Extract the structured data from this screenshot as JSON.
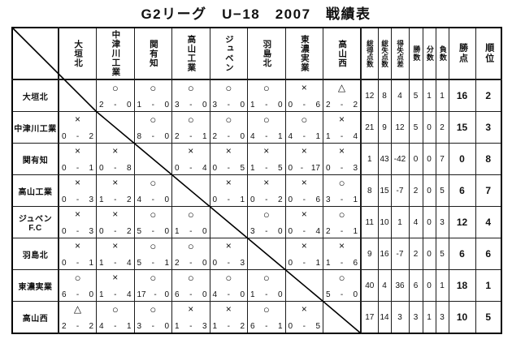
{
  "title": "G2リーグ　U−18　2007　戦績表",
  "columns": {
    "teams": [
      "大垣北",
      "中津川工業",
      "関有知",
      "高山工業",
      "ジュベン",
      "羽島北",
      "東濃実業",
      "高山西"
    ],
    "stats": [
      "総得点数",
      "総失点数",
      "得失点差",
      "勝数",
      "分数",
      "負数",
      "勝点",
      "順位"
    ]
  },
  "marks": {
    "win": "○",
    "lose": "×",
    "draw": "△"
  },
  "score_separator": "-",
  "rows": [
    {
      "name": "大垣北",
      "results": [
        null,
        {
          "m": "○",
          "l": "2",
          "r": "0"
        },
        {
          "m": "○",
          "l": "1",
          "r": "0"
        },
        {
          "m": "○",
          "l": "3",
          "r": "0"
        },
        {
          "m": "○",
          "l": "3",
          "r": "0"
        },
        {
          "m": "○",
          "l": "1",
          "r": "0"
        },
        {
          "m": "×",
          "l": "0",
          "r": "6"
        },
        {
          "m": "△",
          "l": "2",
          "r": "2"
        }
      ],
      "stats": [
        "12",
        "8",
        "4",
        "5",
        "1",
        "1",
        "16",
        "2"
      ]
    },
    {
      "name": "中津川工業",
      "results": [
        {
          "m": "×",
          "l": "0",
          "r": "2"
        },
        null,
        {
          "m": "○",
          "l": "8",
          "r": "0"
        },
        {
          "m": "○",
          "l": "2",
          "r": "1"
        },
        {
          "m": "○",
          "l": "2",
          "r": "0"
        },
        {
          "m": "○",
          "l": "4",
          "r": "1"
        },
        {
          "m": "○",
          "l": "4",
          "r": "1"
        },
        {
          "m": "×",
          "l": "1",
          "r": "4"
        }
      ],
      "stats": [
        "21",
        "9",
        "12",
        "5",
        "0",
        "2",
        "15",
        "3"
      ]
    },
    {
      "name": "関有知",
      "results": [
        {
          "m": "×",
          "l": "0",
          "r": "1"
        },
        {
          "m": "×",
          "l": "0",
          "r": "8"
        },
        null,
        {
          "m": "×",
          "l": "0",
          "r": "4"
        },
        {
          "m": "×",
          "l": "0",
          "r": "5"
        },
        {
          "m": "×",
          "l": "1",
          "r": "5"
        },
        {
          "m": "×",
          "l": "0",
          "r": "17"
        },
        {
          "m": "×",
          "l": "0",
          "r": "3"
        }
      ],
      "stats": [
        "1",
        "43",
        "-42",
        "0",
        "0",
        "7",
        "0",
        "8"
      ]
    },
    {
      "name": "高山工業",
      "results": [
        {
          "m": "×",
          "l": "0",
          "r": "3"
        },
        {
          "m": "×",
          "l": "1",
          "r": "2"
        },
        {
          "m": "○",
          "l": "4",
          "r": "0"
        },
        null,
        {
          "m": "×",
          "l": "0",
          "r": "1"
        },
        {
          "m": "×",
          "l": "0",
          "r": "2"
        },
        {
          "m": "×",
          "l": "0",
          "r": "6"
        },
        {
          "m": "○",
          "l": "3",
          "r": "1"
        }
      ],
      "stats": [
        "8",
        "15",
        "-7",
        "2",
        "0",
        "5",
        "6",
        "7"
      ]
    },
    {
      "name": "ジュベンF.C",
      "results": [
        {
          "m": "×",
          "l": "0",
          "r": "3"
        },
        {
          "m": "×",
          "l": "0",
          "r": "2"
        },
        {
          "m": "○",
          "l": "5",
          "r": "0"
        },
        {
          "m": "○",
          "l": "1",
          "r": "0"
        },
        null,
        {
          "m": "○",
          "l": "3",
          "r": "0"
        },
        {
          "m": "×",
          "l": "0",
          "r": "4"
        },
        {
          "m": "○",
          "l": "2",
          "r": "1"
        }
      ],
      "stats": [
        "11",
        "10",
        "1",
        "4",
        "0",
        "3",
        "12",
        "4"
      ]
    },
    {
      "name": "羽島北",
      "results": [
        {
          "m": "×",
          "l": "0",
          "r": "1"
        },
        {
          "m": "×",
          "l": "1",
          "r": "4"
        },
        {
          "m": "○",
          "l": "5",
          "r": "1"
        },
        {
          "m": "○",
          "l": "2",
          "r": "0"
        },
        {
          "m": "×",
          "l": "0",
          "r": "3"
        },
        null,
        {
          "m": "×",
          "l": "0",
          "r": "1"
        },
        {
          "m": "×",
          "l": "1",
          "r": "6"
        }
      ],
      "stats": [
        "9",
        "16",
        "-7",
        "2",
        "0",
        "5",
        "6",
        "6"
      ]
    },
    {
      "name": "東濃実業",
      "results": [
        {
          "m": "○",
          "l": "6",
          "r": "0"
        },
        {
          "m": "×",
          "l": "1",
          "r": "4"
        },
        {
          "m": "○",
          "l": "17",
          "r": "0"
        },
        {
          "m": "○",
          "l": "6",
          "r": "0"
        },
        {
          "m": "○",
          "l": "4",
          "r": "0"
        },
        {
          "m": "○",
          "l": "1",
          "r": "0"
        },
        null,
        {
          "m": "○",
          "l": "5",
          "r": "0"
        }
      ],
      "stats": [
        "40",
        "4",
        "36",
        "6",
        "0",
        "1",
        "18",
        "1"
      ]
    },
    {
      "name": "高山西",
      "results": [
        {
          "m": "△",
          "l": "2",
          "r": "2"
        },
        {
          "m": "○",
          "l": "4",
          "r": "1"
        },
        {
          "m": "○",
          "l": "3",
          "r": "0"
        },
        {
          "m": "×",
          "l": "1",
          "r": "3"
        },
        {
          "m": "×",
          "l": "1",
          "r": "2"
        },
        {
          "m": "○",
          "l": "6",
          "r": "1"
        },
        {
          "m": "×",
          "l": "0",
          "r": "5"
        },
        null
      ],
      "stats": [
        "17",
        "14",
        "3",
        "3",
        "1",
        "3",
        "10",
        "5"
      ]
    }
  ]
}
